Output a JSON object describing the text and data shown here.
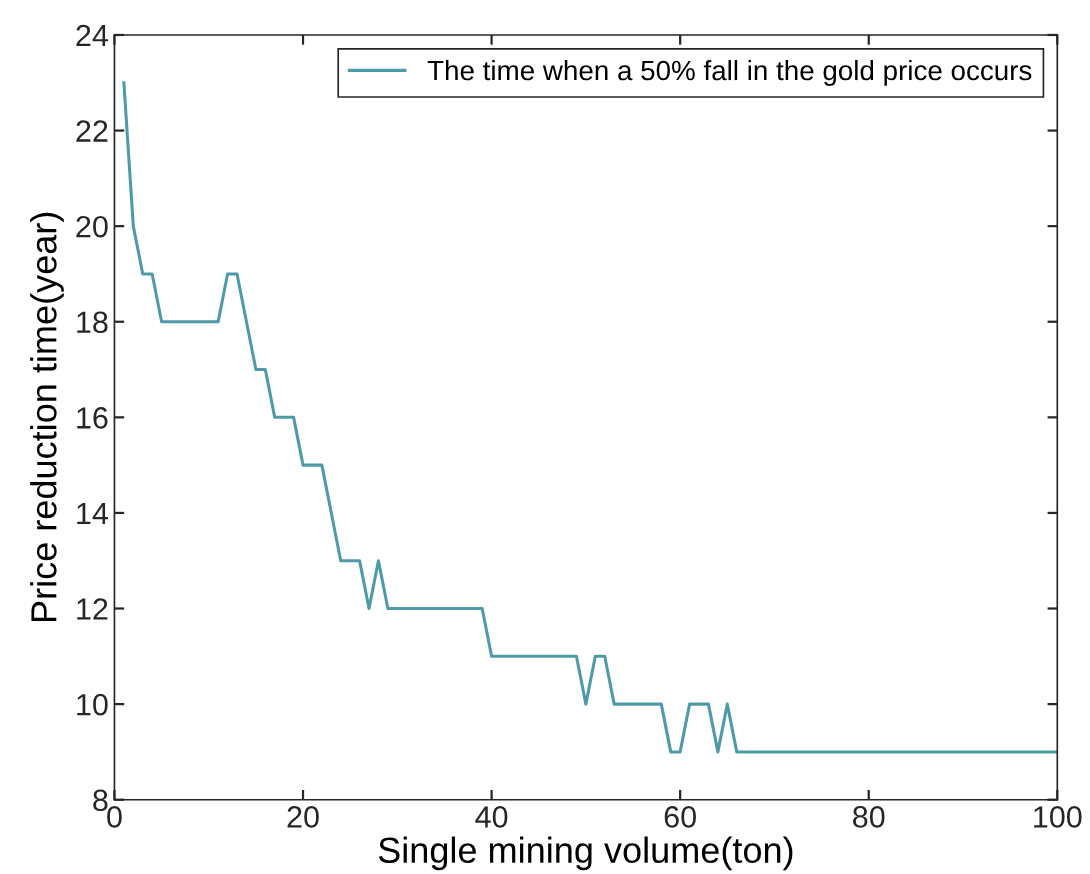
{
  "chart_data": {
    "type": "line",
    "xlabel": "Single mining volume(ton)",
    "ylabel": "Price reduction time(year)",
    "xlim": [
      0,
      100
    ],
    "ylim": [
      8,
      24
    ],
    "xticks": [
      0,
      20,
      40,
      60,
      80,
      100
    ],
    "yticks": [
      8,
      10,
      12,
      14,
      16,
      18,
      20,
      22,
      24
    ],
    "grid": false,
    "legend": "top right",
    "marker": "none",
    "line_style": "solid",
    "series": [
      {
        "name": "The time when a 50% fall in the gold price occurs",
        "color": "#4f9aa8",
        "x": [
          1,
          2,
          3,
          4,
          5,
          11,
          12,
          13,
          14,
          15,
          16,
          17,
          19,
          20,
          22,
          23,
          24,
          26,
          27,
          28,
          29,
          39,
          40,
          49,
          50,
          51,
          52,
          53,
          58,
          59,
          60,
          61,
          63,
          64,
          65,
          66,
          100
        ],
        "values": [
          23,
          20,
          19,
          19,
          18,
          18,
          19,
          19,
          18,
          17,
          17,
          16,
          16,
          15,
          15,
          14,
          13,
          13,
          12,
          13,
          12,
          12,
          11,
          11,
          10,
          11,
          11,
          10,
          10,
          9,
          9,
          10,
          10,
          9,
          10,
          9,
          9
        ]
      }
    ]
  }
}
